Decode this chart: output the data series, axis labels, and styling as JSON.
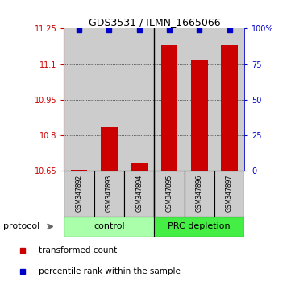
{
  "title": "GDS3531 / ILMN_1665066",
  "samples": [
    "GSM347892",
    "GSM347893",
    "GSM347894",
    "GSM347895",
    "GSM347896",
    "GSM347897"
  ],
  "red_values": [
    10.655,
    10.835,
    10.685,
    11.18,
    11.12,
    11.18
  ],
  "blue_values": [
    99,
    99,
    99,
    99,
    99,
    99
  ],
  "ylim_left": [
    10.65,
    11.25
  ],
  "ylim_right": [
    0,
    100
  ],
  "yticks_left": [
    10.65,
    10.8,
    10.95,
    11.1,
    11.25
  ],
  "yticks_right": [
    0,
    25,
    50,
    75,
    100
  ],
  "ytick_labels_left": [
    "10.65",
    "10.8",
    "10.95",
    "11.1",
    "11.25"
  ],
  "ytick_labels_right": [
    "0",
    "25",
    "50",
    "75",
    "100%"
  ],
  "groups": [
    {
      "label": "control",
      "color": "#aaffaa"
    },
    {
      "label": "PRC depletion",
      "color": "#44ee44"
    }
  ],
  "protocol_label": "protocol",
  "bar_color": "#cc0000",
  "dot_color": "#0000cc",
  "bar_width": 0.55,
  "background_color": "#ffffff",
  "panel_bg": "#cccccc",
  "legend_red_label": "transformed count",
  "legend_blue_label": "percentile rank within the sample",
  "left_axis_color": "#cc0000",
  "right_axis_color": "#0000cc",
  "figsize": [
    3.61,
    3.54
  ],
  "dpi": 100
}
